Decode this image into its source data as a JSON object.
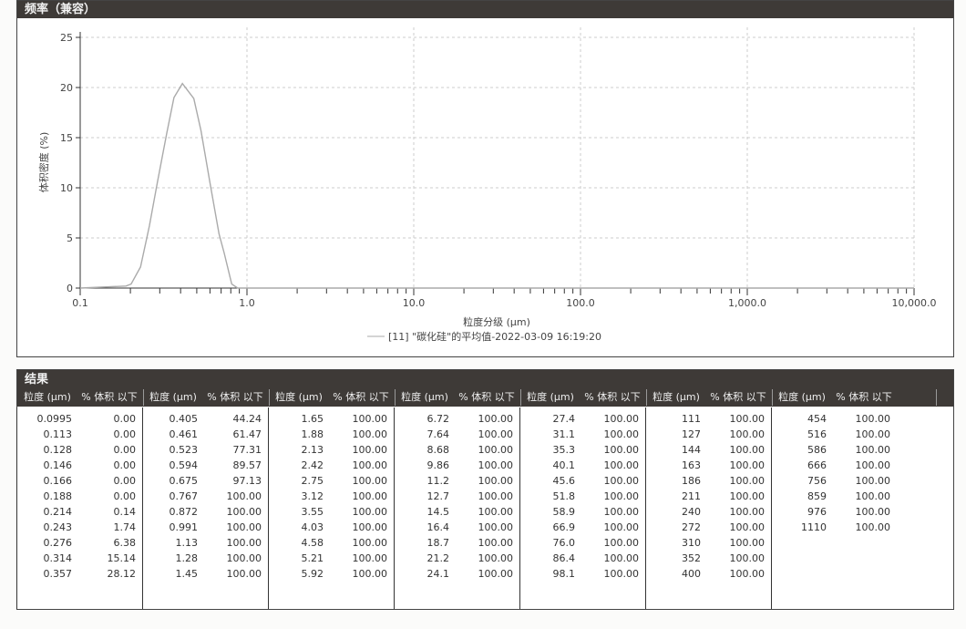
{
  "chart_panel": {
    "title": "频率（兼容）"
  },
  "chart_data": {
    "type": "line",
    "xlabel": "粒度分级 (μm)",
    "ylabel": "体积密度 (%)",
    "x_scale": "log",
    "xlim": [
      0.1,
      10000
    ],
    "ylim": [
      0,
      25
    ],
    "x_ticks": [
      "0.1",
      "1.0",
      "10.0",
      "100.0",
      "1,000.0",
      "10,000.0"
    ],
    "y_ticks": [
      "0",
      "5",
      "10",
      "15",
      "20",
      "25"
    ],
    "grid": true,
    "legend": "bottom",
    "series": [
      {
        "name": "[11] \"碳化硅\"的平均值-2022-03-09 16:19:20",
        "color": "#aaaaaa",
        "x": [
          0.1,
          0.188,
          0.202,
          0.23,
          0.26,
          0.29,
          0.33,
          0.365,
          0.41,
          0.48,
          0.53,
          0.6,
          0.68,
          0.73,
          0.81,
          0.88,
          10000
        ],
        "y": [
          0,
          0.2,
          0.4,
          2.1,
          6.2,
          10.5,
          15.4,
          19.0,
          20.4,
          18.9,
          15.7,
          10.5,
          5.4,
          3.5,
          0.4,
          0,
          0
        ]
      }
    ]
  },
  "results": {
    "title": "结果",
    "col_size": "粒度 (μm)",
    "col_pct": "% 体积 以下",
    "groups": [
      [
        [
          "0.0995",
          "0.00"
        ],
        [
          "0.113",
          "0.00"
        ],
        [
          "0.128",
          "0.00"
        ],
        [
          "0.146",
          "0.00"
        ],
        [
          "0.166",
          "0.00"
        ],
        [
          "0.188",
          "0.00"
        ],
        [
          "0.214",
          "0.14"
        ],
        [
          "0.243",
          "1.74"
        ],
        [
          "0.276",
          "6.38"
        ],
        [
          "0.314",
          "15.14"
        ],
        [
          "0.357",
          "28.12"
        ]
      ],
      [
        [
          "0.405",
          "44.24"
        ],
        [
          "0.461",
          "61.47"
        ],
        [
          "0.523",
          "77.31"
        ],
        [
          "0.594",
          "89.57"
        ],
        [
          "0.675",
          "97.13"
        ],
        [
          "0.767",
          "100.00"
        ],
        [
          "0.872",
          "100.00"
        ],
        [
          "0.991",
          "100.00"
        ],
        [
          "1.13",
          "100.00"
        ],
        [
          "1.28",
          "100.00"
        ],
        [
          "1.45",
          "100.00"
        ]
      ],
      [
        [
          "1.65",
          "100.00"
        ],
        [
          "1.88",
          "100.00"
        ],
        [
          "2.13",
          "100.00"
        ],
        [
          "2.42",
          "100.00"
        ],
        [
          "2.75",
          "100.00"
        ],
        [
          "3.12",
          "100.00"
        ],
        [
          "3.55",
          "100.00"
        ],
        [
          "4.03",
          "100.00"
        ],
        [
          "4.58",
          "100.00"
        ],
        [
          "5.21",
          "100.00"
        ],
        [
          "5.92",
          "100.00"
        ]
      ],
      [
        [
          "6.72",
          "100.00"
        ],
        [
          "7.64",
          "100.00"
        ],
        [
          "8.68",
          "100.00"
        ],
        [
          "9.86",
          "100.00"
        ],
        [
          "11.2",
          "100.00"
        ],
        [
          "12.7",
          "100.00"
        ],
        [
          "14.5",
          "100.00"
        ],
        [
          "16.4",
          "100.00"
        ],
        [
          "18.7",
          "100.00"
        ],
        [
          "21.2",
          "100.00"
        ],
        [
          "24.1",
          "100.00"
        ]
      ],
      [
        [
          "27.4",
          "100.00"
        ],
        [
          "31.1",
          "100.00"
        ],
        [
          "35.3",
          "100.00"
        ],
        [
          "40.1",
          "100.00"
        ],
        [
          "45.6",
          "100.00"
        ],
        [
          "51.8",
          "100.00"
        ],
        [
          "58.9",
          "100.00"
        ],
        [
          "66.9",
          "100.00"
        ],
        [
          "76.0",
          "100.00"
        ],
        [
          "86.4",
          "100.00"
        ],
        [
          "98.1",
          "100.00"
        ]
      ],
      [
        [
          "111",
          "100.00"
        ],
        [
          "127",
          "100.00"
        ],
        [
          "144",
          "100.00"
        ],
        [
          "163",
          "100.00"
        ],
        [
          "186",
          "100.00"
        ],
        [
          "211",
          "100.00"
        ],
        [
          "240",
          "100.00"
        ],
        [
          "272",
          "100.00"
        ],
        [
          "310",
          "100.00"
        ],
        [
          "352",
          "100.00"
        ],
        [
          "400",
          "100.00"
        ]
      ],
      [
        [
          "454",
          "100.00"
        ],
        [
          "516",
          "100.00"
        ],
        [
          "586",
          "100.00"
        ],
        [
          "666",
          "100.00"
        ],
        [
          "756",
          "100.00"
        ],
        [
          "859",
          "100.00"
        ],
        [
          "976",
          "100.00"
        ],
        [
          "1110",
          "100.00"
        ]
      ]
    ]
  }
}
